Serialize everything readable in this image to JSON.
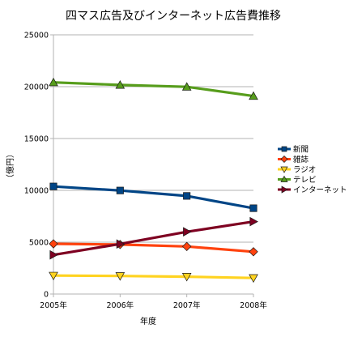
{
  "chart_data": {
    "type": "line",
    "title": "四マス広告及びインターネット広告費推移",
    "xlabel": "年度",
    "ylabel": "（億円）",
    "categories": [
      "2005年",
      "2006年",
      "2007年",
      "2008年"
    ],
    "ylim": [
      0,
      25000
    ],
    "yticks": [
      0,
      5000,
      10000,
      15000,
      20000,
      25000
    ],
    "grid": true,
    "legend_position": "right",
    "series": [
      {
        "name": "新聞",
        "values": [
          10377,
          9986,
          9462,
          8276
        ],
        "color": "#004586",
        "marker": "square"
      },
      {
        "name": "雑誌",
        "values": [
          4842,
          4777,
          4585,
          4078
        ],
        "color": "#ff420e",
        "marker": "diamond"
      },
      {
        "name": "ラジオ",
        "values": [
          1778,
          1744,
          1671,
          1549
        ],
        "color": "#ffd320",
        "marker": "triangle-down"
      },
      {
        "name": "テレビ",
        "values": [
          20411,
          20161,
          19981,
          19092
        ],
        "color": "#579d1c",
        "marker": "triangle-up"
      },
      {
        "name": "インターネット",
        "values": [
          3777,
          4826,
          6003,
          6983
        ],
        "color": "#7e0021",
        "marker": "triangle-right"
      }
    ]
  }
}
